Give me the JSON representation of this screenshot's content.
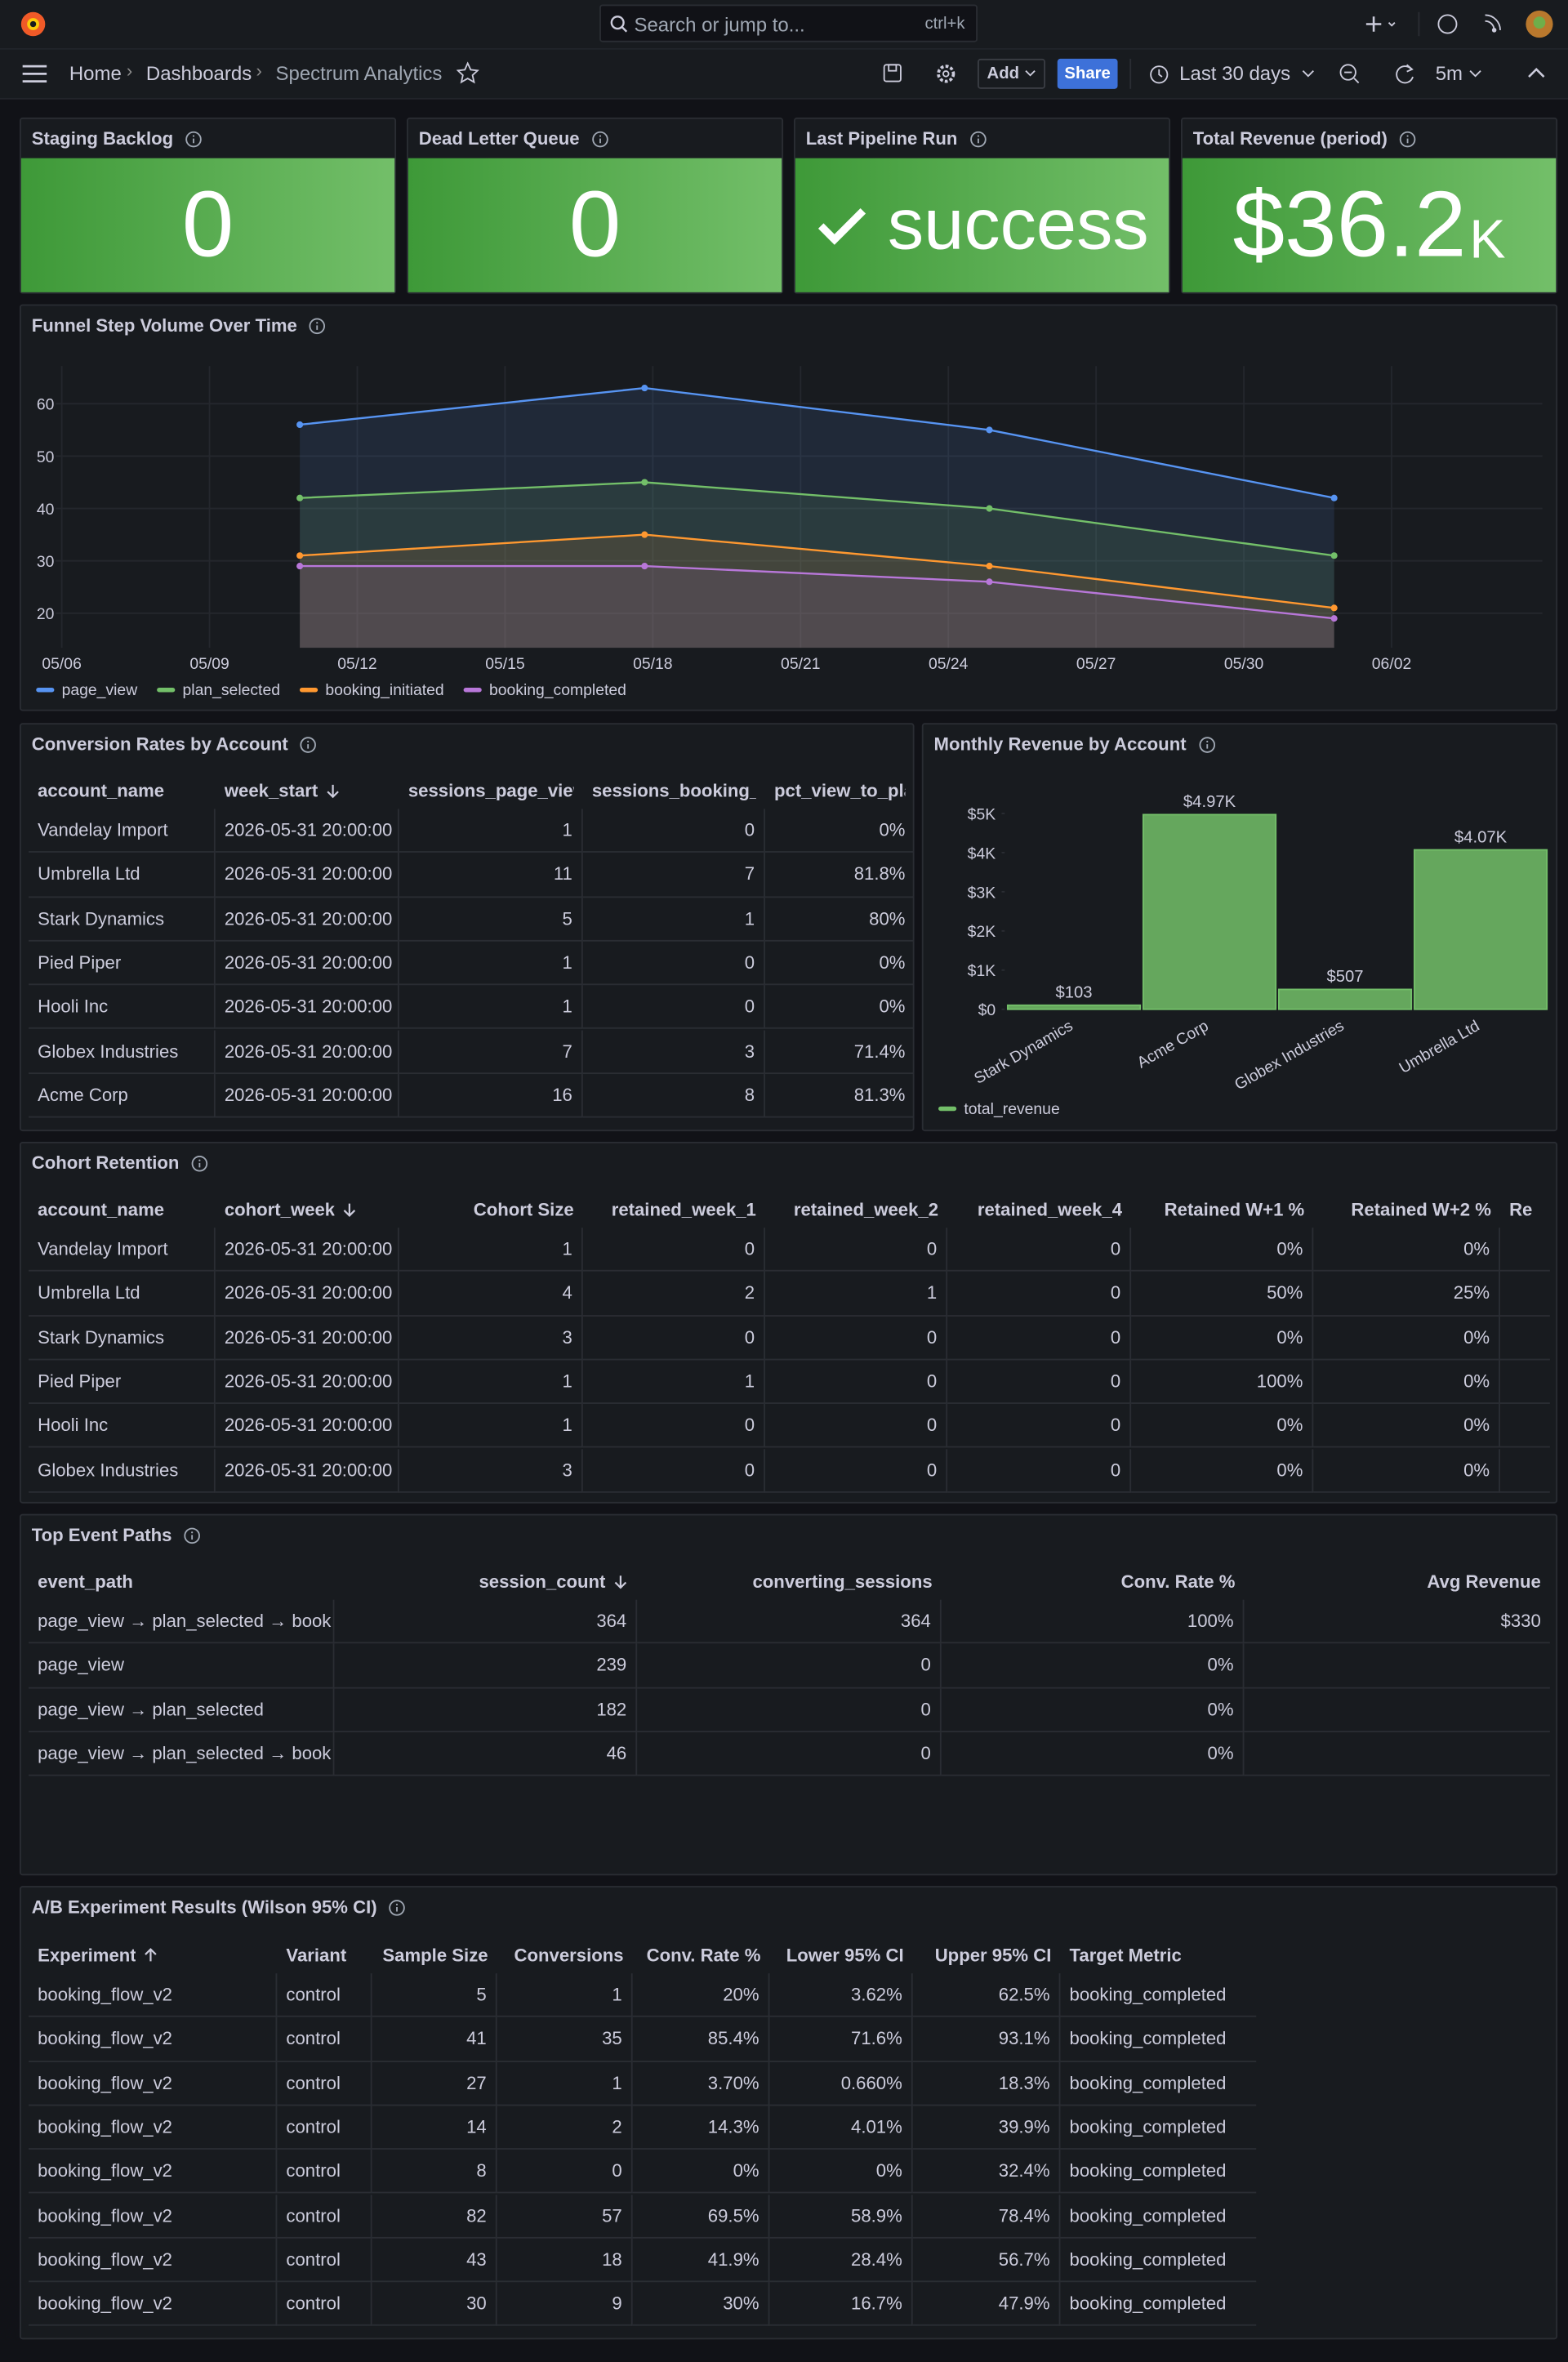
{
  "topbar": {
    "search": "Search or jump to...",
    "shortcut": "ctrl+k"
  },
  "breadcrumbs": [
    "Home",
    "Dashboards",
    "Spectrum Analytics"
  ],
  "toolbar": {
    "add": "Add",
    "share": "Share",
    "time_range": "Last 30 days",
    "refresh": "5m"
  },
  "stats": [
    {
      "title": "Staging Backlog",
      "value": 0
    },
    {
      "title": "Dead Letter Queue",
      "value": 0
    },
    {
      "title": "Last Pipeline Run",
      "value": "success"
    },
    {
      "title": "Total Revenue (period)",
      "value": "$36.2",
      "unit": "K"
    }
  ],
  "chart_data": [
    {
      "type": "line",
      "title": "Funnel Step Volume Over Time",
      "x": [
        "05/10 20:00",
        "05/17 20:00",
        "05/24 20:00",
        "05/31 20:00"
      ],
      "xlim": [
        "05/06",
        "06/05"
      ],
      "xticks": [
        "05/06",
        "05/09",
        "05/12",
        "05/15",
        "05/18",
        "05/21",
        "05/24",
        "05/27",
        "05/30",
        "06/02"
      ],
      "ylim": [
        13.4,
        67.2
      ],
      "yticks": [
        20,
        30,
        40,
        50,
        60
      ],
      "grid": true,
      "legend": "bottom-left",
      "series": [
        {
          "name": "page_view",
          "color": "#5794f2",
          "values": [
            56,
            63,
            55,
            42
          ]
        },
        {
          "name": "plan_selected",
          "color": "#73bf69",
          "values": [
            42,
            45,
            40,
            31
          ]
        },
        {
          "name": "booking_initiated",
          "color": "#ff9830",
          "values": [
            31,
            35,
            29,
            21
          ]
        },
        {
          "name": "booking_completed",
          "color": "#b877d9",
          "values": [
            29,
            29,
            26,
            19
          ]
        }
      ]
    },
    {
      "type": "bar",
      "title": "Monthly Revenue by Account",
      "categories": [
        "Stark Dynamics",
        "Acme Corp",
        "Globex Industries",
        "Umbrella Ltd"
      ],
      "ylim": [
        0,
        5500
      ],
      "yticks": [
        {
          "value": 0,
          "label": "$0"
        },
        {
          "value": 1000,
          "label": "$1K"
        },
        {
          "value": 2000,
          "label": "$2K"
        },
        {
          "value": 3000,
          "label": "$3K"
        },
        {
          "value": 4000,
          "label": "$4K"
        },
        {
          "value": 5000,
          "label": "$5K"
        }
      ],
      "legend": "bottom-left",
      "series": [
        {
          "name": "total_revenue",
          "color": "#73bf69",
          "values": [
            103,
            4970,
            507,
            4070
          ],
          "value_labels": [
            "$103",
            "$4.97K",
            "$507",
            "$4.07K"
          ]
        }
      ]
    }
  ],
  "conversion_table": {
    "title": "Conversion Rates by Account",
    "columns": [
      "account_name",
      "week_start",
      "sessions_page_view",
      "sessions_booking_c",
      "pct_view_to_pla"
    ],
    "rows": [
      [
        "Vandelay Import",
        "2026-05-31 20:00:00",
        1,
        0,
        "0%"
      ],
      [
        "Umbrella Ltd",
        "2026-05-31 20:00:00",
        11,
        7,
        "81.8%"
      ],
      [
        "Stark Dynamics",
        "2026-05-31 20:00:00",
        5,
        1,
        "80%"
      ],
      [
        "Pied Piper",
        "2026-05-31 20:00:00",
        1,
        0,
        "0%"
      ],
      [
        "Hooli Inc",
        "2026-05-31 20:00:00",
        1,
        0,
        "0%"
      ],
      [
        "Globex Industries",
        "2026-05-31 20:00:00",
        7,
        3,
        "71.4%"
      ],
      [
        "Acme Corp",
        "2026-05-31 20:00:00",
        16,
        8,
        "81.3%"
      ]
    ]
  },
  "cohort_table": {
    "title": "Cohort Retention",
    "columns": [
      "account_name",
      "cohort_week",
      "Cohort Size",
      "retained_week_1",
      "retained_week_2",
      "retained_week_4",
      "Retained W+1 %",
      "Retained W+2 %",
      "Re"
    ],
    "rows": [
      [
        "Vandelay Import",
        "2026-05-31 20:00:00",
        1,
        0,
        0,
        0,
        "0%",
        "0%"
      ],
      [
        "Umbrella Ltd",
        "2026-05-31 20:00:00",
        4,
        2,
        1,
        0,
        "50%",
        "25%"
      ],
      [
        "Stark Dynamics",
        "2026-05-31 20:00:00",
        3,
        0,
        0,
        0,
        "0%",
        "0%"
      ],
      [
        "Pied Piper",
        "2026-05-31 20:00:00",
        1,
        1,
        0,
        0,
        "100%",
        "0%"
      ],
      [
        "Hooli Inc",
        "2026-05-31 20:00:00",
        1,
        0,
        0,
        0,
        "0%",
        "0%"
      ],
      [
        "Globex Industries",
        "2026-05-31 20:00:00",
        3,
        0,
        0,
        0,
        "0%",
        "0%"
      ]
    ]
  },
  "paths_table": {
    "title": "Top Event Paths",
    "columns": [
      "event_path",
      "session_count",
      "converting_sessions",
      "Conv. Rate %",
      "Avg Revenue"
    ],
    "rows": [
      [
        "page_view → plan_selected → book",
        364,
        364,
        "100%",
        "$330"
      ],
      [
        "page_view",
        239,
        0,
        "0%"
      ],
      [
        "page_view → plan_selected",
        182,
        0,
        "0%"
      ],
      [
        "page_view → plan_selected → book",
        46,
        0,
        "0%"
      ]
    ]
  },
  "ab_table": {
    "title": "A/B Experiment Results (Wilson 95% CI)",
    "columns": [
      "Experiment",
      "Variant",
      "Sample Size",
      "Conversions",
      "Conv. Rate %",
      "Lower 95% CI",
      "Upper 95% CI",
      "Target Metric"
    ],
    "rows": [
      [
        "booking_flow_v2",
        "control",
        5,
        1,
        "20%",
        "3.62%",
        "62.5%",
        "booking_completed"
      ],
      [
        "booking_flow_v2",
        "control",
        41,
        35,
        "85.4%",
        "71.6%",
        "93.1%",
        "booking_completed"
      ],
      [
        "booking_flow_v2",
        "control",
        27,
        1,
        "3.70%",
        "0.660%",
        "18.3%",
        "booking_completed"
      ],
      [
        "booking_flow_v2",
        "control",
        14,
        2,
        "14.3%",
        "4.01%",
        "39.9%",
        "booking_completed"
      ],
      [
        "booking_flow_v2",
        "control",
        8,
        0,
        "0%",
        "0%",
        "32.4%",
        "booking_completed"
      ],
      [
        "booking_flow_v2",
        "control",
        82,
        57,
        "69.5%",
        "58.9%",
        "78.4%",
        "booking_completed"
      ],
      [
        "booking_flow_v2",
        "control",
        43,
        18,
        "41.9%",
        "28.4%",
        "56.7%",
        "booking_completed"
      ],
      [
        "booking_flow_v2",
        "control",
        30,
        9,
        "30%",
        "16.7%",
        "47.9%",
        "booking_completed"
      ]
    ]
  }
}
